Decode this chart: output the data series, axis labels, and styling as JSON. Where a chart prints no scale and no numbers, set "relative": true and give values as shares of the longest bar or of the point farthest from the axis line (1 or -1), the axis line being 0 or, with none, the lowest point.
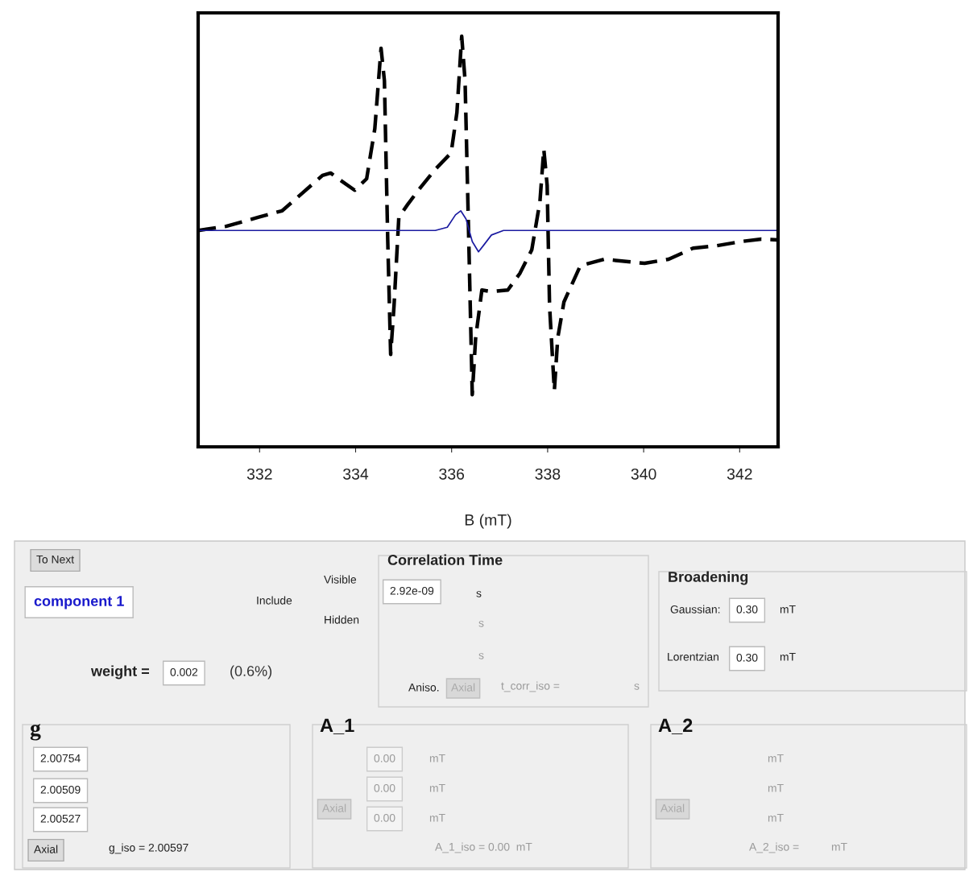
{
  "chart_data": {
    "type": "line",
    "relative": true,
    "xlabel": "B (mT)",
    "xlim": [
      330.72,
      342.8
    ],
    "xticks": [
      332,
      334,
      336,
      338,
      340,
      342
    ],
    "grid": false,
    "legend": false,
    "series": [
      {
        "color": "#000000",
        "line_style": "dashed",
        "x": [
          330.72,
          331.3,
          331.97,
          332.47,
          332.89,
          333.31,
          333.48,
          333.64,
          333.98,
          334.23,
          334.4,
          334.53,
          334.6,
          334.67,
          334.73,
          334.8,
          334.9,
          335.07,
          335.32,
          335.66,
          335.99,
          336.11,
          336.21,
          336.28,
          336.35,
          336.43,
          336.5,
          336.63,
          336.83,
          337.17,
          337.42,
          337.67,
          337.84,
          337.92,
          337.99,
          338.04,
          338.14,
          338.21,
          338.34,
          338.68,
          339.18,
          339.68,
          340.02,
          340.52,
          341.03,
          341.53,
          342.03,
          342.45,
          342.8
        ],
        "values": [
          0.527,
          0.537,
          0.559,
          0.575,
          0.618,
          0.661,
          0.667,
          0.653,
          0.625,
          0.653,
          0.775,
          0.971,
          0.892,
          0.5,
          0.225,
          0.343,
          0.559,
          0.588,
          0.627,
          0.676,
          0.716,
          0.814,
          1.0,
          0.892,
          0.539,
          0.127,
          0.265,
          0.382,
          0.378,
          0.382,
          0.422,
          0.48,
          0.598,
          0.725,
          0.637,
          0.343,
          0.137,
          0.265,
          0.353,
          0.441,
          0.457,
          0.451,
          0.447,
          0.457,
          0.484,
          0.49,
          0.5,
          0.506,
          0.504
        ]
      },
      {
        "color": "#1a1aa0",
        "line_style": "solid",
        "x": [
          330.72,
          335.66,
          335.91,
          336.08,
          336.19,
          336.3,
          336.43,
          336.56,
          336.66,
          336.83,
          337.08,
          342.8
        ],
        "values": [
          0.527,
          0.527,
          0.535,
          0.565,
          0.575,
          0.555,
          0.5,
          0.475,
          0.49,
          0.516,
          0.527,
          0.527
        ]
      }
    ],
    "annotations": [
      "To Next",
      "component 1",
      "Include",
      "Visible",
      "Hidden",
      "weight =",
      "0.002",
      "(0.6%)",
      "Correlation Time",
      "2.92e-09",
      "s",
      "s",
      "s",
      "Aniso.",
      "Axial",
      "t_corr_iso =",
      "s",
      "Broadening",
      "Gaussian:",
      "0.30",
      "mT",
      "Lorentzian",
      "0.30",
      "mT",
      "g",
      "2.00754",
      "2.00509",
      "2.00527",
      "Axial",
      "g_iso = 2.00597",
      "A_1",
      "0.00",
      "mT",
      "0.00",
      "mT",
      "Axial",
      "0.00",
      "mT",
      "A_1_iso = 0.00  mT",
      "A_2",
      "mT",
      "mT",
      "mT",
      "Axial",
      "A_2_iso =",
      "mT"
    ]
  }
}
